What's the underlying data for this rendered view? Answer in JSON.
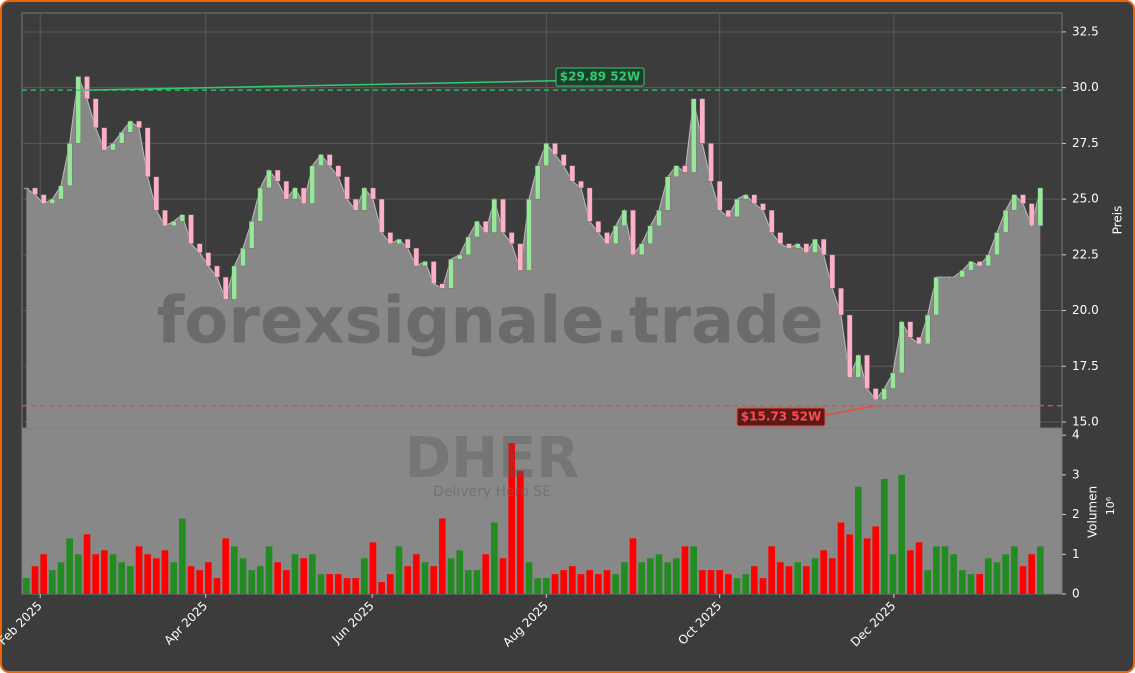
{
  "chart_data": {
    "type": "candlestick",
    "watermark": "forexsignale.trade",
    "ticker": "DHER",
    "company": "Delivery Hero SE",
    "y_label": "Preis",
    "vol_label": "Volumen",
    "vol_scale": "10⁶",
    "close": [
      25.5,
      25.2,
      24.8,
      25.0,
      25.6,
      27.5,
      30.5,
      29.5,
      28.2,
      27.2,
      27.5,
      28.0,
      28.5,
      28.2,
      26.0,
      24.5,
      23.8,
      24.0,
      24.3,
      23.0,
      22.6,
      22.0,
      21.5,
      20.5,
      22.0,
      22.8,
      24.0,
      25.5,
      26.3,
      25.8,
      25.0,
      25.5,
      24.8,
      26.5,
      27.0,
      26.5,
      26.0,
      25.0,
      24.5,
      25.5,
      25.0,
      23.5,
      23.0,
      23.2,
      22.8,
      22.0,
      22.2,
      21.2,
      21.0,
      22.3,
      22.5,
      23.3,
      24.0,
      23.5,
      25.0,
      23.5,
      23.0,
      21.8,
      25.0,
      26.5,
      27.5,
      27.0,
      26.5,
      25.8,
      25.5,
      24.0,
      23.5,
      23.0,
      23.8,
      24.5,
      22.5,
      23.0,
      23.8,
      24.5,
      26.0,
      26.5,
      26.2,
      29.5,
      27.5,
      25.8,
      24.5,
      24.2,
      25.0,
      25.2,
      24.8,
      24.5,
      23.5,
      23.0,
      22.8,
      23.0,
      22.6,
      23.2,
      22.5,
      21.0,
      19.8,
      17.0,
      18.0,
      16.5,
      16.0,
      16.5,
      17.2,
      19.5,
      18.8,
      18.5,
      19.8,
      21.5,
      21.5,
      21.5,
      21.8,
      22.2,
      22.0,
      22.5,
      23.5,
      24.5,
      25.2,
      24.8,
      23.8,
      25.5
    ],
    "volume": [
      0.4,
      0.7,
      1.0,
      0.6,
      0.8,
      1.4,
      1.0,
      1.5,
      1.0,
      1.1,
      1.0,
      0.8,
      0.7,
      1.2,
      1.0,
      0.9,
      1.1,
      0.8,
      1.9,
      0.7,
      0.6,
      0.8,
      0.4,
      1.4,
      1.2,
      0.9,
      0.6,
      0.7,
      1.2,
      0.8,
      0.6,
      1.0,
      0.9,
      1.0,
      0.5,
      0.5,
      0.5,
      0.4,
      0.4,
      0.9,
      1.3,
      0.3,
      0.5,
      1.2,
      0.7,
      1.0,
      0.8,
      0.7,
      1.9,
      0.9,
      1.1,
      0.6,
      0.6,
      1.0,
      1.8,
      0.9,
      3.8,
      3.1,
      0.8,
      0.4,
      0.4,
      0.5,
      0.6,
      0.7,
      0.5,
      0.6,
      0.5,
      0.6,
      0.5,
      0.8,
      1.4,
      0.8,
      0.9,
      1.0,
      0.8,
      0.9,
      1.2,
      1.2,
      0.6,
      0.6,
      0.6,
      0.5,
      0.4,
      0.5,
      0.7,
      0.4,
      1.2,
      0.8,
      0.7,
      0.8,
      0.7,
      0.9,
      1.1,
      0.9,
      1.8,
      1.5,
      2.7,
      1.4,
      1.7,
      2.9,
      1.0,
      3.0,
      1.1,
      1.3,
      0.6,
      1.2,
      1.2,
      1.0,
      0.6,
      0.5,
      0.5,
      0.9,
      0.8,
      1.0,
      1.2,
      0.7,
      1.0,
      1.2
    ],
    "xlim": [
      0,
      120
    ],
    "xticks": [
      {
        "value": 2.1,
        "label": "Feb 2025"
      },
      {
        "value": 21.2,
        "label": "Apr 2025"
      },
      {
        "value": 40.4,
        "label": "Jun 2025"
      },
      {
        "value": 60.5,
        "label": "Aug 2025"
      },
      {
        "value": 80.5,
        "label": "Oct 2025"
      },
      {
        "value": 100.6,
        "label": "Dec 2025"
      }
    ],
    "ylim": [
      14.73,
      33.35
    ],
    "yticks": [
      {
        "value": 15,
        "label": "15.0"
      },
      17.5,
      {
        "value": 20,
        "label": "20.0"
      },
      22.5,
      {
        "value": 25,
        "label": "25.0"
      },
      27.5,
      {
        "value": 30,
        "label": "30.0"
      },
      32.5
    ],
    "vol_ylim": [
      0,
      4.18
    ],
    "vol_yticks": [
      0,
      1,
      2,
      3,
      4
    ],
    "high_52w": {
      "value": 29.89,
      "label": "$29.89 52W"
    },
    "low_52w": {
      "value": 15.73,
      "label": "$15.73 52W"
    },
    "colors": {
      "up": "#228b22",
      "down": "#ff0000",
      "candle_up": "#98e698",
      "candle_down": "#ffb0c8",
      "area": "#888888",
      "high": "#2ecc71",
      "low": "#e74c3c"
    },
    "grid": true
  }
}
